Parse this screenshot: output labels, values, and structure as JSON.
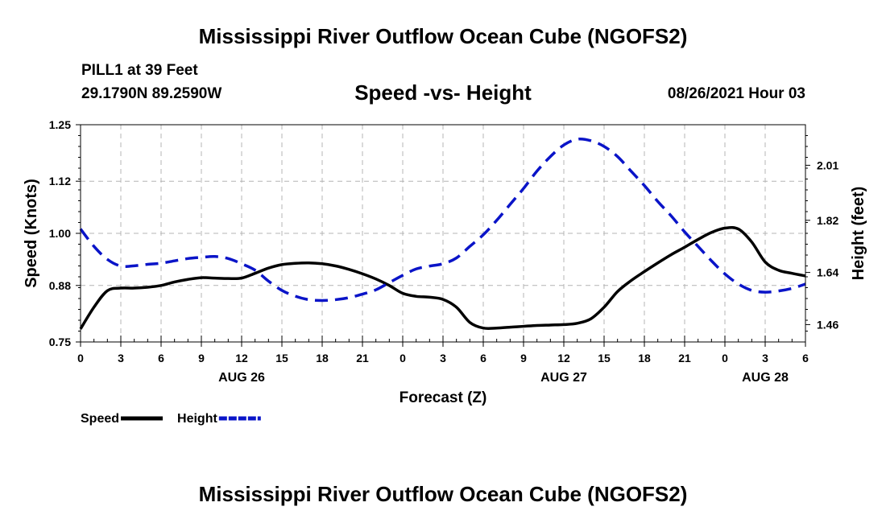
{
  "title": "Mississippi River Outflow Ocean Cube (NGOFS2)",
  "footer_title": "Mississippi River Outflow Ocean Cube (NGOFS2)",
  "header": {
    "station": "PILL1 at 39 Feet",
    "coords": "29.1790N  89.2590W",
    "subtitle": "Speed -vs- Height",
    "datetime": "08/26/2021 Hour 03"
  },
  "chart_data": {
    "type": "line",
    "title": "Speed -vs- Height",
    "xlabel": "Forecast (Z)",
    "ylabel_left": "Speed (Knots)",
    "ylabel_right": "Height (feet)",
    "x_range": [
      0,
      54
    ],
    "x_ticks": [
      0,
      3,
      6,
      9,
      12,
      15,
      18,
      21,
      24,
      27,
      30,
      33,
      36,
      39,
      42,
      45,
      48,
      51,
      54
    ],
    "x_tick_labels": [
      "0",
      "3",
      "6",
      "9",
      "12",
      "15",
      "18",
      "21",
      "0",
      "3",
      "6",
      "9",
      "12",
      "15",
      "18",
      "21",
      "0",
      "3",
      "6"
    ],
    "day_labels": [
      {
        "label": "AUG 26",
        "x": 12
      },
      {
        "label": "AUG 27",
        "x": 36
      },
      {
        "label": "AUG 28",
        "x": 51
      }
    ],
    "y_left_range": [
      0.75,
      1.25
    ],
    "y_left_ticks": [
      0.75,
      0.88,
      1.0,
      1.12,
      1.25
    ],
    "y_left_tick_labels": [
      "0.75",
      "0.88",
      "1.00",
      "1.12",
      "1.25"
    ],
    "y_right_range": [
      1.4,
      2.15
    ],
    "y_right_ticks": [
      1.46,
      1.64,
      1.82,
      2.01
    ],
    "y_right_tick_labels": [
      "1.46",
      "1.64",
      "1.82",
      "2.01"
    ],
    "grid": true,
    "legend_position": "bottom-left",
    "series": [
      {
        "name": "Speed",
        "axis": "left",
        "color": "#000000",
        "style": "solid",
        "x": [
          0,
          1,
          2,
          3,
          4,
          5,
          6,
          7,
          8,
          9,
          10,
          11,
          12,
          13,
          14,
          15,
          16,
          17,
          18,
          19,
          20,
          21,
          22,
          23,
          24,
          25,
          26,
          27,
          28,
          29,
          30,
          31,
          32,
          33,
          34,
          35,
          36,
          37,
          38,
          39,
          40,
          41,
          42,
          43,
          44,
          45,
          46,
          47,
          48,
          49,
          50,
          51,
          52,
          53,
          54
        ],
        "values": [
          0.78,
          0.83,
          0.868,
          0.874,
          0.874,
          0.876,
          0.88,
          0.888,
          0.894,
          0.898,
          0.897,
          0.896,
          0.897,
          0.908,
          0.92,
          0.928,
          0.931,
          0.932,
          0.93,
          0.925,
          0.917,
          0.907,
          0.895,
          0.88,
          0.862,
          0.855,
          0.853,
          0.848,
          0.83,
          0.795,
          0.782,
          0.782,
          0.784,
          0.786,
          0.788,
          0.789,
          0.79,
          0.793,
          0.803,
          0.83,
          0.866,
          0.891,
          0.912,
          0.932,
          0.951,
          0.968,
          0.986,
          1.002,
          1.012,
          1.01,
          0.98,
          0.934,
          0.915,
          0.908,
          0.902
        ]
      },
      {
        "name": "Height",
        "axis": "right",
        "color": "#0a14c8",
        "style": "dashed",
        "x": [
          0,
          1,
          2,
          3,
          4,
          5,
          6,
          7,
          8,
          9,
          10,
          11,
          12,
          13,
          14,
          15,
          16,
          17,
          18,
          19,
          20,
          21,
          22,
          23,
          24,
          25,
          26,
          27,
          28,
          29,
          30,
          31,
          32,
          33,
          34,
          35,
          36,
          37,
          38,
          39,
          40,
          41,
          42,
          43,
          44,
          45,
          46,
          47,
          48,
          49,
          50,
          51,
          52,
          53,
          54
        ],
        "values": [
          1.79,
          1.73,
          1.685,
          1.662,
          1.663,
          1.668,
          1.672,
          1.68,
          1.688,
          1.692,
          1.695,
          1.688,
          1.67,
          1.648,
          1.61,
          1.578,
          1.558,
          1.546,
          1.543,
          1.546,
          1.553,
          1.565,
          1.58,
          1.605,
          1.63,
          1.652,
          1.662,
          1.67,
          1.69,
          1.73,
          1.77,
          1.82,
          1.875,
          1.93,
          1.99,
          2.04,
          2.08,
          2.1,
          2.095,
          2.075,
          2.04,
          1.99,
          1.94,
          1.885,
          1.835,
          1.78,
          1.73,
          1.68,
          1.635,
          1.6,
          1.578,
          1.572,
          1.576,
          1.585,
          1.6
        ]
      }
    ]
  }
}
